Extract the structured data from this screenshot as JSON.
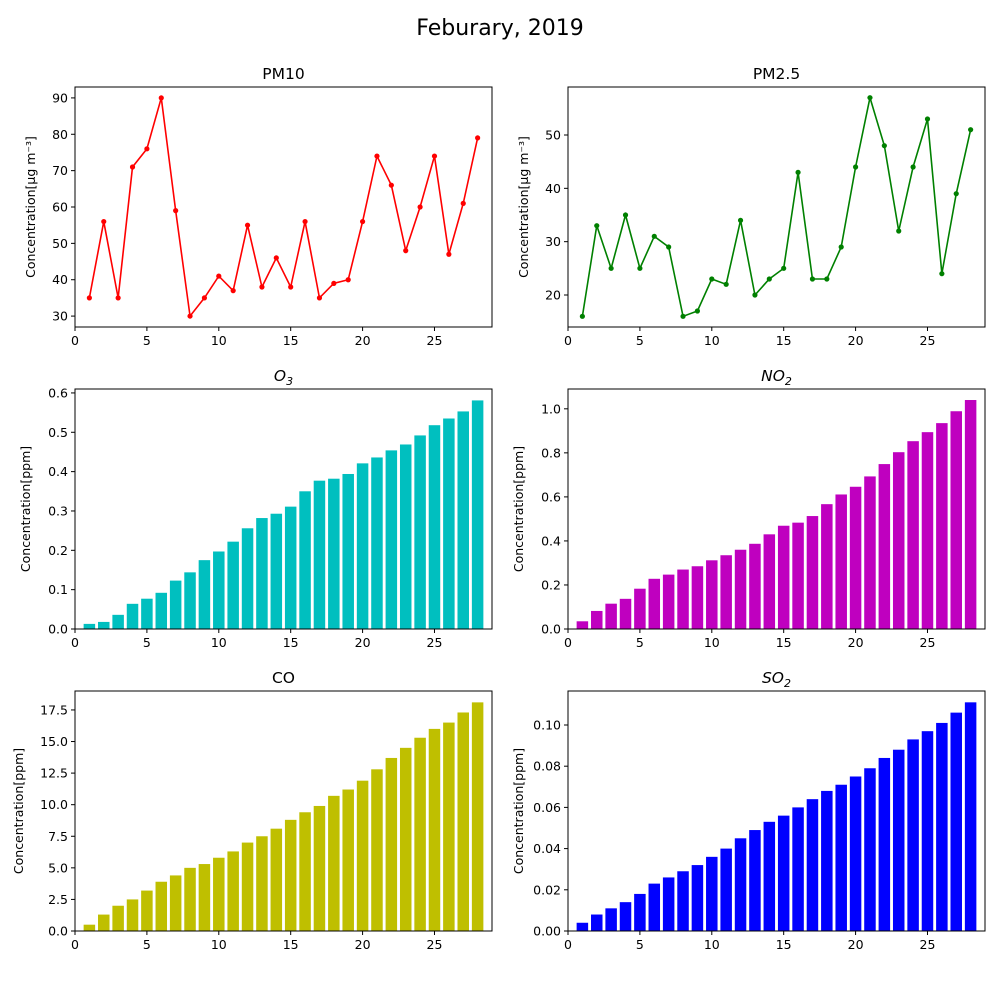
{
  "figure": {
    "title": "Feburary, 2019"
  },
  "chart_data": [
    {
      "type": "line",
      "title": "PM10",
      "ylabel": "Concentration[μg m⁻³]",
      "color": "#ff0000",
      "x": [
        1,
        2,
        3,
        4,
        5,
        6,
        7,
        8,
        9,
        10,
        11,
        12,
        13,
        14,
        15,
        16,
        17,
        18,
        19,
        20,
        21,
        22,
        23,
        24,
        25,
        26,
        27,
        28
      ],
      "values": [
        35,
        56,
        35,
        71,
        76,
        90,
        59,
        30,
        35,
        41,
        37,
        55,
        38,
        46,
        38,
        56,
        35,
        39,
        40,
        56,
        74,
        66,
        48,
        60,
        74,
        47,
        61,
        79
      ],
      "xlim": [
        0,
        29
      ],
      "ylim": [
        27,
        93
      ],
      "xticks": [
        0,
        5,
        10,
        15,
        20,
        25
      ],
      "yticks": [
        30,
        40,
        50,
        60,
        70,
        80,
        90
      ]
    },
    {
      "type": "line",
      "title": "PM2.5",
      "ylabel": "Concentration[μg m⁻³]",
      "color": "#008000",
      "x": [
        1,
        2,
        3,
        4,
        5,
        6,
        7,
        8,
        9,
        10,
        11,
        12,
        13,
        14,
        15,
        16,
        17,
        18,
        19,
        20,
        21,
        22,
        23,
        24,
        25,
        26,
        27,
        28
      ],
      "values": [
        16,
        33,
        25,
        35,
        25,
        31,
        29,
        16,
        17,
        23,
        22,
        34,
        20,
        23,
        25,
        43,
        23,
        23,
        29,
        44,
        57,
        48,
        32,
        44,
        53,
        24,
        39,
        51
      ],
      "xlim": [
        0,
        29
      ],
      "ylim": [
        14,
        59
      ],
      "xticks": [
        0,
        5,
        10,
        15,
        20,
        25
      ],
      "yticks": [
        20,
        30,
        40,
        50
      ]
    },
    {
      "type": "bar",
      "title": "O3",
      "title_main": "O",
      "title_sub": "3",
      "ylabel": "Concentration[ppm]",
      "color": "#00bfbf",
      "x": [
        1,
        2,
        3,
        4,
        5,
        6,
        7,
        8,
        9,
        10,
        11,
        12,
        13,
        14,
        15,
        16,
        17,
        18,
        19,
        20,
        21,
        22,
        23,
        24,
        25,
        26,
        27,
        28
      ],
      "values": [
        0.013,
        0.018,
        0.036,
        0.064,
        0.077,
        0.092,
        0.123,
        0.144,
        0.175,
        0.197,
        0.222,
        0.256,
        0.282,
        0.293,
        0.311,
        0.35,
        0.377,
        0.382,
        0.394,
        0.421,
        0.436,
        0.454,
        0.469,
        0.492,
        0.518,
        0.535,
        0.553,
        0.581
      ],
      "xlim": [
        0,
        29
      ],
      "ylim": [
        0,
        0.61
      ],
      "xticks": [
        0,
        5,
        10,
        15,
        20,
        25
      ],
      "yticks": [
        0.0,
        0.1,
        0.2,
        0.3,
        0.4,
        0.5,
        0.6
      ],
      "ytick_labels": [
        "0.0",
        "0.1",
        "0.2",
        "0.3",
        "0.4",
        "0.5",
        "0.6"
      ]
    },
    {
      "type": "bar",
      "title": "NO2",
      "title_main": "NO",
      "title_sub": "2",
      "ylabel": "Concentration[ppm]",
      "color": "#bf00bf",
      "x": [
        1,
        2,
        3,
        4,
        5,
        6,
        7,
        8,
        9,
        10,
        11,
        12,
        13,
        14,
        15,
        16,
        17,
        18,
        19,
        20,
        21,
        22,
        23,
        24,
        25,
        26,
        27,
        28
      ],
      "values": [
        0.035,
        0.082,
        0.115,
        0.137,
        0.183,
        0.228,
        0.247,
        0.27,
        0.285,
        0.312,
        0.335,
        0.36,
        0.387,
        0.43,
        0.469,
        0.483,
        0.513,
        0.567,
        0.611,
        0.646,
        0.693,
        0.749,
        0.803,
        0.853,
        0.894,
        0.935,
        0.989,
        1.04
      ],
      "xlim": [
        0,
        29
      ],
      "ylim": [
        0,
        1.09
      ],
      "xticks": [
        0,
        5,
        10,
        15,
        20,
        25
      ],
      "yticks": [
        0.0,
        0.2,
        0.4,
        0.6,
        0.8,
        1.0
      ],
      "ytick_labels": [
        "0.0",
        "0.2",
        "0.4",
        "0.6",
        "0.8",
        "1.0"
      ]
    },
    {
      "type": "bar",
      "title": "CO",
      "ylabel": "Concentration[ppm]",
      "color": "#bfbf00",
      "x": [
        1,
        2,
        3,
        4,
        5,
        6,
        7,
        8,
        9,
        10,
        11,
        12,
        13,
        14,
        15,
        16,
        17,
        18,
        19,
        20,
        21,
        22,
        23,
        24,
        25,
        26,
        27,
        28
      ],
      "values": [
        0.5,
        1.3,
        2.0,
        2.5,
        3.2,
        3.9,
        4.4,
        5.0,
        5.3,
        5.8,
        6.3,
        7.0,
        7.5,
        8.1,
        8.8,
        9.4,
        9.9,
        10.7,
        11.2,
        11.9,
        12.8,
        13.7,
        14.5,
        15.3,
        16.0,
        16.5,
        17.3,
        18.1
      ],
      "xlim": [
        0,
        29
      ],
      "ylim": [
        0,
        19.0
      ],
      "xticks": [
        0,
        5,
        10,
        15,
        20,
        25
      ],
      "yticks": [
        0.0,
        2.5,
        5.0,
        7.5,
        10.0,
        12.5,
        15.0,
        17.5
      ],
      "ytick_labels": [
        "0.0",
        "2.5",
        "5.0",
        "7.5",
        "10.0",
        "12.5",
        "15.0",
        "17.5"
      ]
    },
    {
      "type": "bar",
      "title": "SO2",
      "title_main": "SO",
      "title_sub": "2",
      "ylabel": "Concentration[ppm]",
      "color": "#0000ff",
      "x": [
        1,
        2,
        3,
        4,
        5,
        6,
        7,
        8,
        9,
        10,
        11,
        12,
        13,
        14,
        15,
        16,
        17,
        18,
        19,
        20,
        21,
        22,
        23,
        24,
        25,
        26,
        27,
        28
      ],
      "values": [
        0.004,
        0.008,
        0.011,
        0.014,
        0.018,
        0.023,
        0.026,
        0.029,
        0.032,
        0.036,
        0.04,
        0.045,
        0.049,
        0.053,
        0.056,
        0.06,
        0.064,
        0.068,
        0.071,
        0.075,
        0.079,
        0.084,
        0.088,
        0.093,
        0.097,
        0.101,
        0.106,
        0.111
      ],
      "xlim": [
        0,
        29
      ],
      "ylim": [
        0,
        0.1165
      ],
      "xticks": [
        0,
        5,
        10,
        15,
        20,
        25
      ],
      "yticks": [
        0.0,
        0.02,
        0.04,
        0.06,
        0.08,
        0.1
      ],
      "ytick_labels": [
        "0.00",
        "0.02",
        "0.04",
        "0.06",
        "0.08",
        "0.10"
      ]
    }
  ]
}
